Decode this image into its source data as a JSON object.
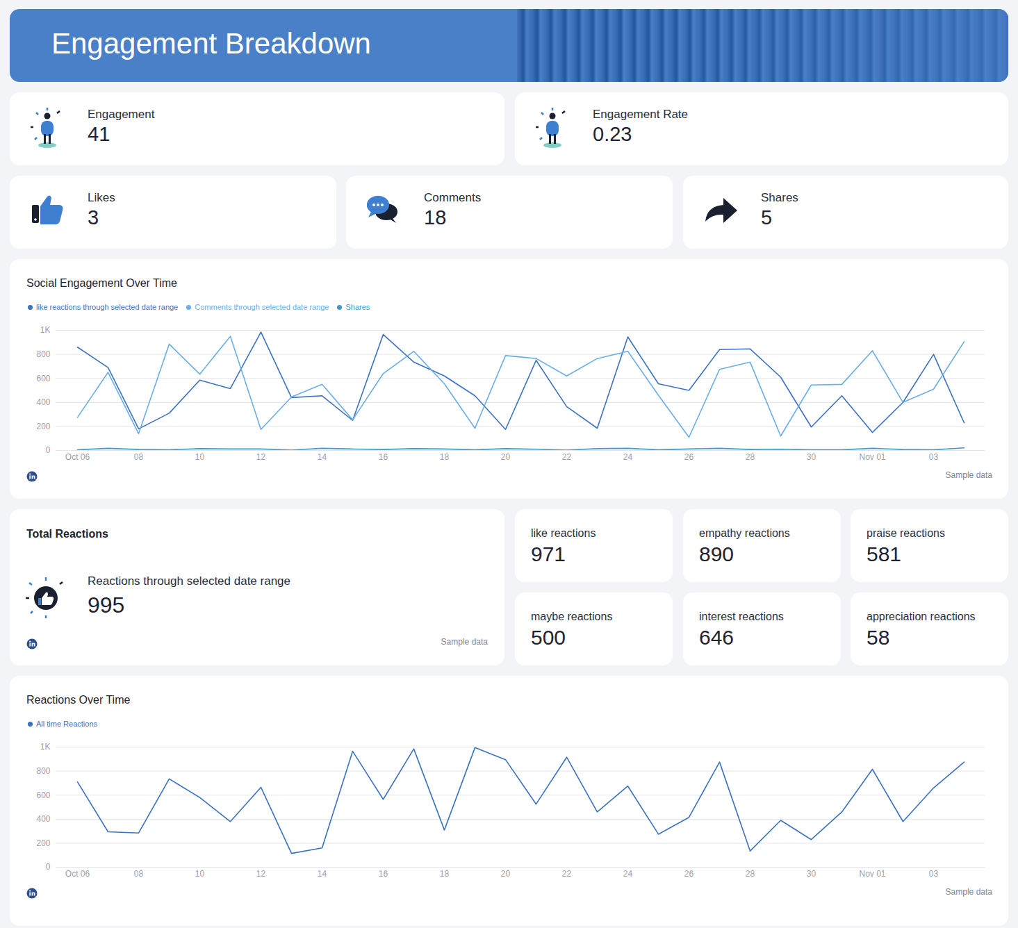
{
  "title": "Engagement Breakdown",
  "cards": [
    {
      "label": "Engagement",
      "value": 41
    },
    {
      "label": "Engagement Rate",
      "value": 0.23
    },
    {
      "label": "Likes",
      "value": 3
    },
    {
      "label": "Comments",
      "value": 18
    },
    {
      "label": "Shares",
      "value": 5
    }
  ],
  "total_reactions": {
    "title": "Total Reactions",
    "label": "Reactions through selected date range",
    "value": 995,
    "caption": "Sample data"
  },
  "reaction_types": [
    {
      "label": "like reactions",
      "value": 971
    },
    {
      "label": "empathy reactions",
      "value": 890
    },
    {
      "label": "praise reactions",
      "value": 581
    },
    {
      "label": "maybe reactions",
      "value": 500
    },
    {
      "label": "interest reactions",
      "value": 646
    },
    {
      "label": "appreciation reactions",
      "value": 58
    }
  ],
  "chart_data": [
    {
      "type": "line",
      "title": "Social Engagement Over Time",
      "caption": "Sample data",
      "categories": [
        "Oct 06",
        null,
        "08",
        null,
        "10",
        null,
        "12",
        null,
        "14",
        null,
        "16",
        null,
        "18",
        null,
        "20",
        null,
        "22",
        null,
        "24",
        null,
        "26",
        null,
        "28",
        null,
        "30",
        null,
        "Nov 01",
        null,
        "03",
        null
      ],
      "series": [
        {
          "name": "like reactions through selected date range",
          "color": "#3a72c0",
          "values": [
            860,
            690,
            180,
            310,
            585,
            515,
            985,
            440,
            455,
            250,
            965,
            735,
            620,
            455,
            175,
            750,
            365,
            185,
            945,
            555,
            500,
            840,
            845,
            610,
            195,
            455,
            150,
            400,
            800,
            230
          ]
        },
        {
          "name": "Comments through selected date range",
          "color": "#6aaee6",
          "values": [
            275,
            650,
            140,
            885,
            635,
            950,
            175,
            445,
            550,
            255,
            640,
            825,
            555,
            185,
            790,
            765,
            620,
            765,
            825,
            460,
            110,
            675,
            735,
            120,
            545,
            550,
            830,
            400,
            510,
            905
          ]
        },
        {
          "name": "Shares",
          "color": "#3d9ac9",
          "values": [
            5,
            18,
            8,
            5,
            15,
            12,
            12,
            3,
            18,
            12,
            8,
            15,
            12,
            5,
            15,
            10,
            3,
            15,
            18,
            5,
            12,
            18,
            8,
            10,
            5,
            5,
            18,
            8,
            5,
            22
          ]
        }
      ],
      "ylim": [
        0,
        1000
      ],
      "yticks": [
        0,
        200,
        400,
        600,
        800,
        {
          "value": 1000,
          "label": "1K"
        }
      ],
      "grid": true,
      "legend": "top-left"
    },
    {
      "type": "line",
      "title": "Reactions Over Time",
      "caption": "Sample data",
      "categories": [
        "Oct 06",
        null,
        "08",
        null,
        "10",
        null,
        "12",
        null,
        "14",
        null,
        "16",
        null,
        "18",
        null,
        "20",
        null,
        "22",
        null,
        "24",
        null,
        "26",
        null,
        "28",
        null,
        "30",
        null,
        "Nov 01",
        null,
        "03",
        null
      ],
      "series": [
        {
          "name": "All time Reactions",
          "color": "#3a72c0",
          "values": [
            710,
            295,
            285,
            735,
            580,
            380,
            665,
            115,
            160,
            965,
            565,
            985,
            310,
            995,
            895,
            525,
            915,
            460,
            675,
            275,
            415,
            875,
            135,
            390,
            230,
            460,
            815,
            380,
            660,
            875
          ]
        }
      ],
      "ylim": [
        0,
        1000
      ],
      "yticks": [
        0,
        200,
        400,
        600,
        800,
        {
          "value": 1000,
          "label": "1K"
        }
      ],
      "grid": true,
      "legend": "top-left"
    }
  ]
}
